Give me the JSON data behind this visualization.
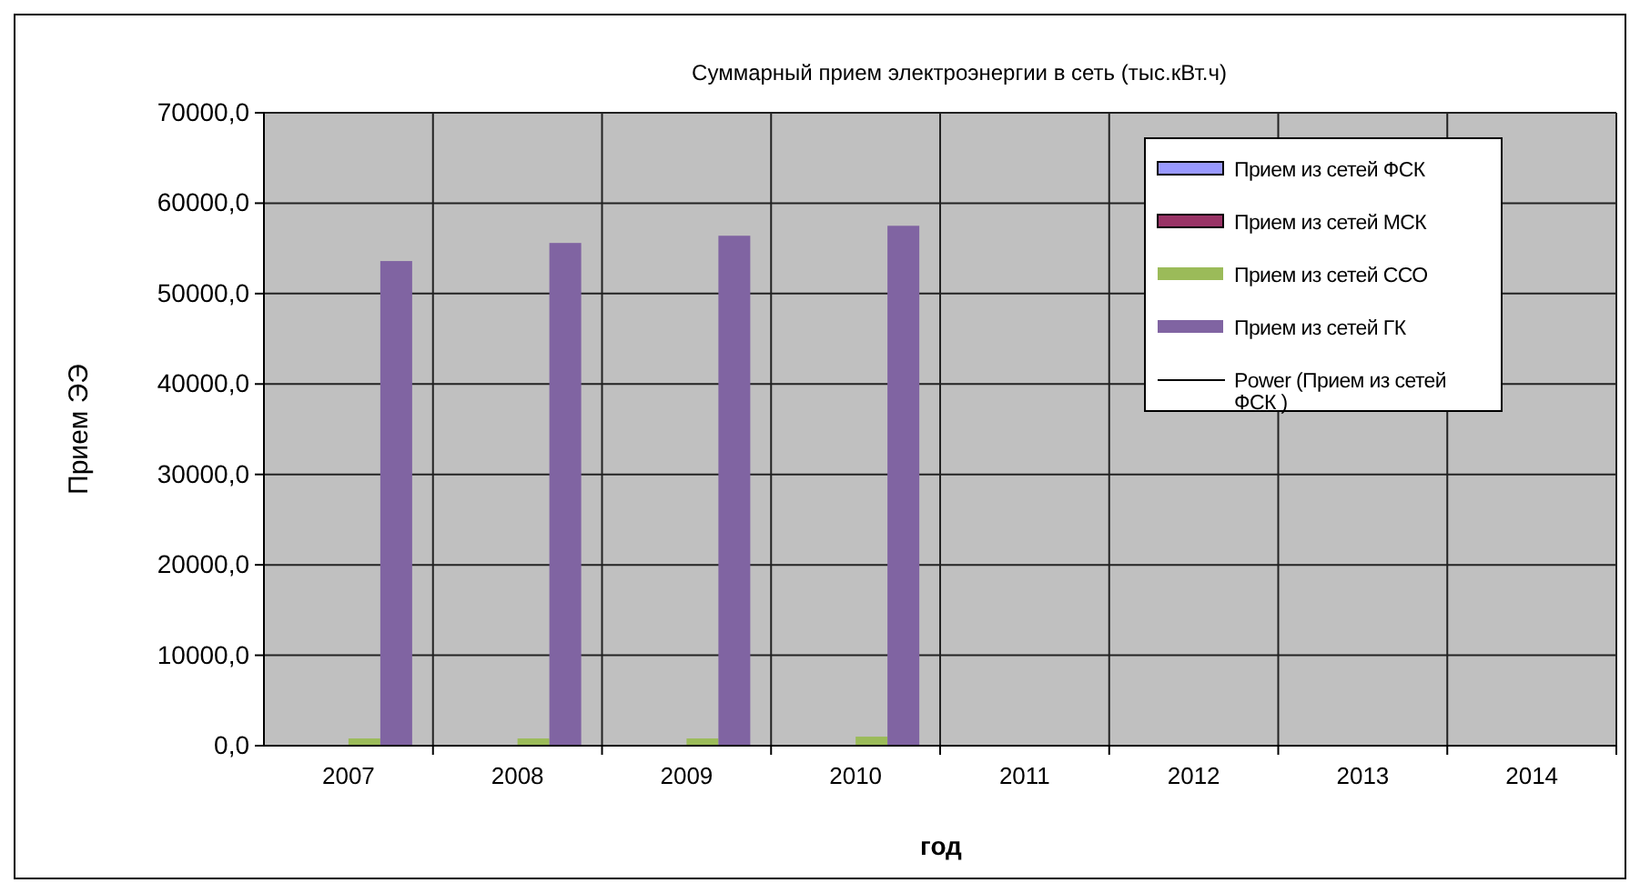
{
  "chart_data": {
    "type": "bar",
    "title": "Суммарный прием электроэнергии в сеть (тыс.кВт.ч)",
    "xlabel": "год",
    "ylabel": "Прием ЭЭ",
    "categories": [
      "2007",
      "2008",
      "2009",
      "2010",
      "2011",
      "2012",
      "2013",
      "2014"
    ],
    "series": [
      {
        "name": "Прием из сетей ФСК",
        "color": "#9999ff",
        "values": [
          0,
          0,
          0,
          0,
          null,
          null,
          null,
          null
        ]
      },
      {
        "name": "Прием из сетей МСК",
        "color": "#993366",
        "values": [
          0,
          0,
          0,
          0,
          null,
          null,
          null,
          null
        ]
      },
      {
        "name": "Прием из сетей ССО",
        "color": "#9bbb59",
        "values": [
          800,
          800,
          800,
          1000,
          null,
          null,
          null,
          null
        ]
      },
      {
        "name": "Прием из сетей ГК",
        "color": "#8064a2",
        "values": [
          53600,
          55600,
          56400,
          57500,
          null,
          null,
          null,
          null
        ]
      },
      {
        "name": "Power (Прием из сетей ФСК )",
        "type": "line",
        "color": "#000000",
        "values": [
          null,
          null,
          null,
          null,
          null,
          null,
          null,
          null
        ]
      }
    ],
    "ylim": [
      0,
      70000
    ],
    "yticks": [
      {
        "value": 0,
        "label": "0,0"
      },
      {
        "value": 10000,
        "label": "10000,0"
      },
      {
        "value": 20000,
        "label": "20000,0"
      },
      {
        "value": 30000,
        "label": "30000,0"
      },
      {
        "value": 40000,
        "label": "40000,0"
      },
      {
        "value": 50000,
        "label": "50000,0"
      },
      {
        "value": 60000,
        "label": "60000,0"
      },
      {
        "value": 70000,
        "label": "70000,0"
      }
    ],
    "grid": true,
    "legend": "top right"
  }
}
